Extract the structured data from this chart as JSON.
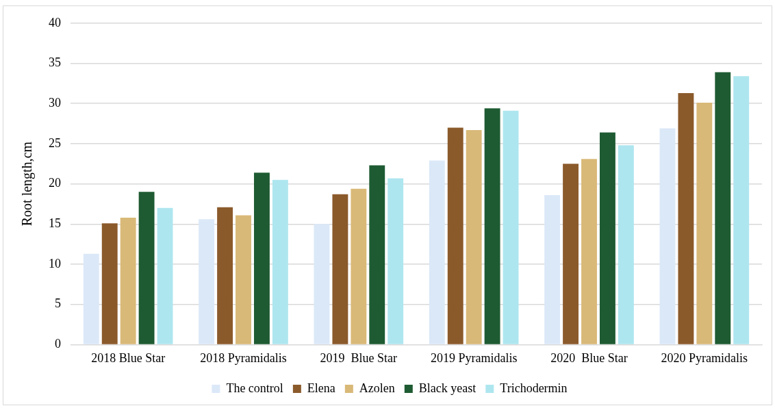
{
  "chart_data": {
    "type": "bar",
    "ylabel": "Root length,cm",
    "categories": [
      "2018 Blue Star",
      "2018 Pyramidalis",
      "2019  Blue Star",
      "2019 Pyramidalis",
      "2020  Blue Star",
      "2020 Pyramidalis"
    ],
    "series": [
      {
        "name": "The control",
        "color": "#dbe8f8",
        "values": [
          11.3,
          15.6,
          15.0,
          22.9,
          18.6,
          26.9
        ]
      },
      {
        "name": "Elena",
        "color": "#8b5a2b",
        "values": [
          15.1,
          17.1,
          18.7,
          27.0,
          22.5,
          31.3
        ]
      },
      {
        "name": "Azolen",
        "color": "#d9b978",
        "values": [
          15.8,
          16.1,
          19.4,
          26.7,
          23.1,
          30.1
        ]
      },
      {
        "name": "Black yeast",
        "color": "#1e5b32",
        "values": [
          19.0,
          21.4,
          22.3,
          29.4,
          26.4,
          33.9
        ]
      },
      {
        "name": "Trichodermin",
        "color": "#aee6ef",
        "values": [
          17.0,
          20.5,
          20.7,
          29.1,
          24.8,
          33.4
        ]
      }
    ],
    "ylim": [
      0,
      40
    ],
    "yticks": [
      0,
      5,
      10,
      15,
      20,
      25,
      30,
      35,
      40
    ],
    "grid": "y",
    "legend": "bottom"
  }
}
